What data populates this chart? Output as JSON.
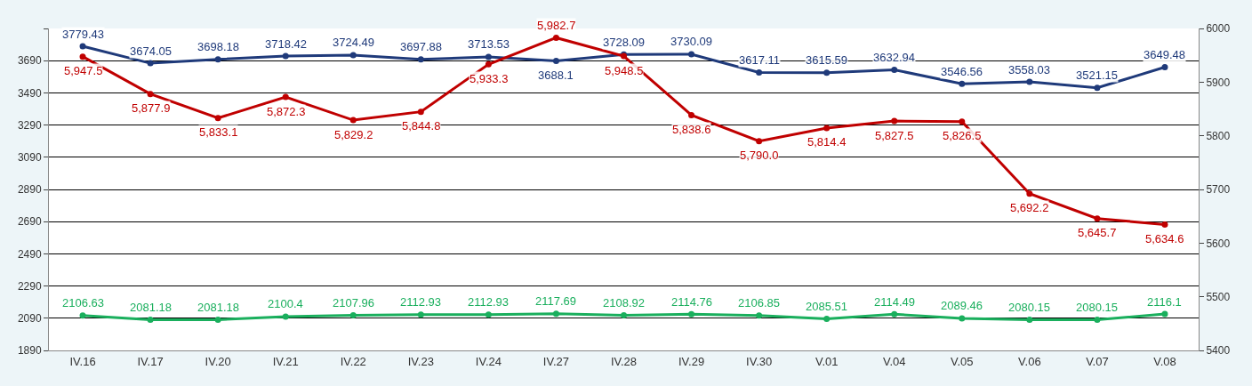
{
  "chart_data": {
    "type": "line",
    "categories": [
      "IV.16",
      "IV.17",
      "IV.20",
      "IV.21",
      "IV.22",
      "IV.23",
      "IV.24",
      "IV.27",
      "IV.28",
      "IV.29",
      "IV.30",
      "V.01",
      "V.04",
      "V.05",
      "V.06",
      "V.07",
      "V.08"
    ],
    "series": [
      {
        "color": "#1f3a7a",
        "values": [
          3779.43,
          3674.05,
          3698.18,
          3718.42,
          3724.49,
          3697.88,
          3713.53,
          3688.1,
          3728.09,
          3730.09,
          3617.11,
          3615.59,
          3632.94,
          3546.56,
          3558.03,
          3521.15,
          3649.48
        ],
        "value_labels": [
          "3779.43",
          "3674.05",
          "3698.18",
          "3718.42",
          "3724.49",
          "3697.88",
          "3713.53",
          "3688.1",
          "3728.09",
          "3730.09",
          "3617.11",
          "3615.59",
          "3632.94",
          "3546.56",
          "3558.03",
          "3521.15",
          "3649.48"
        ]
      },
      {
        "color": "#c00000",
        "axis": "y2",
        "values": [
          5947.5,
          5877.9,
          5833.1,
          5872.3,
          5829.2,
          5844.8,
          5933.3,
          5982.7,
          5948.5,
          5838.6,
          5790.0,
          5814.4,
          5827.5,
          5826.5,
          5692.2,
          5645.7,
          5634.6
        ],
        "value_labels": [
          "5,947.5",
          "5,877.9",
          "5,833.1",
          "5,872.3",
          "5,829.2",
          "5,844.8",
          "5,933.3",
          "5,982.7",
          "5,948.5",
          "5,838.6",
          "5,790.0",
          "5,814.4",
          "5,827.5",
          "5,826.5",
          "5,692.2",
          "5,645.7",
          "5,634.6"
        ]
      },
      {
        "color": "#1aaf5d",
        "values": [
          2106.63,
          2081.18,
          2081.18,
          2100.4,
          2107.96,
          2112.93,
          2112.93,
          2117.69,
          2108.92,
          2114.76,
          2106.85,
          2085.51,
          2114.49,
          2089.46,
          2080.15,
          2080.15,
          2116.1
        ],
        "value_labels": [
          "2106.63",
          "2081.18",
          "2081.18",
          "2100.4",
          "2107.96",
          "2112.93",
          "2112.93",
          "2117.69",
          "2108.92",
          "2114.76",
          "2106.85",
          "2085.51",
          "2114.49",
          "2089.46",
          "2080.15",
          "2080.15",
          "2116.1"
        ]
      }
    ],
    "ylim": [
      1890,
      3890
    ],
    "yticks": [
      1890,
      2090,
      2290,
      2490,
      2690,
      2890,
      3090,
      3290,
      3490,
      3690,
      {
        "value": 3890,
        "label": null
      }
    ],
    "y2lim": [
      5400,
      6000
    ],
    "y2ticks": [
      5400,
      5500,
      5600,
      5700,
      5800,
      5900,
      6000
    ],
    "grid": "y",
    "marker": "circle",
    "line_style": "solid"
  }
}
